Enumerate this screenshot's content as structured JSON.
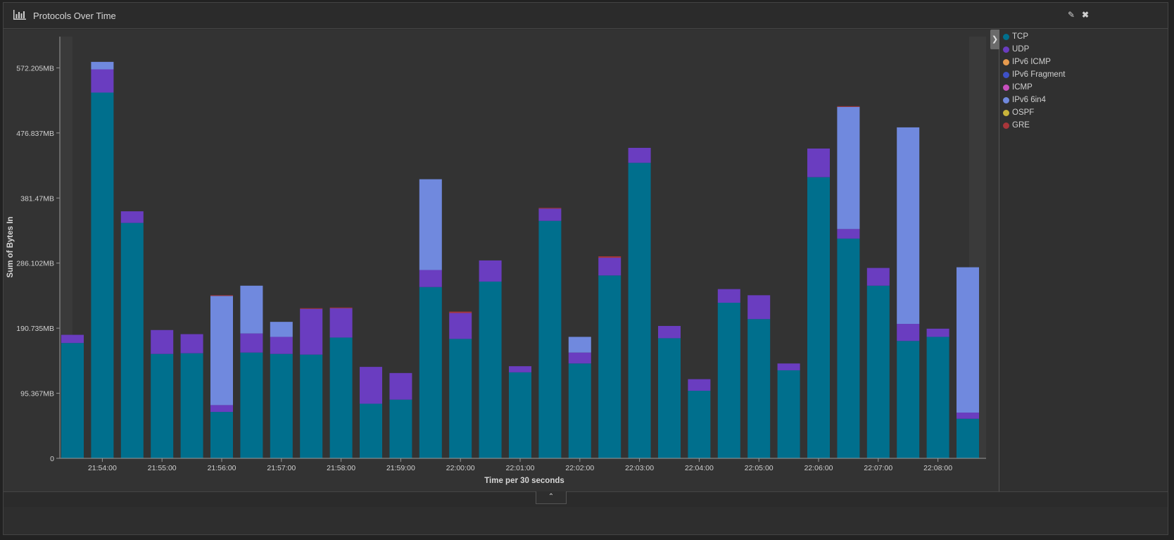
{
  "panel": {
    "title": "Protocols Over Time",
    "edit_icon": "pencil-icon",
    "close_icon": "close-icon"
  },
  "legend": {
    "toggle_icon": "chevron-right-icon",
    "items": [
      {
        "label": "TCP",
        "color": "#006f8d"
      },
      {
        "label": "UDP",
        "color": "#6a3dc0"
      },
      {
        "label": "IPv6 ICMP",
        "color": "#e69a4e"
      },
      {
        "label": "IPv6 Fragment",
        "color": "#3e51c8"
      },
      {
        "label": "ICMP",
        "color": "#c74fbd"
      },
      {
        "label": "IPv6 6in4",
        "color": "#7089de"
      },
      {
        "label": "OSPF",
        "color": "#c9b43b"
      },
      {
        "label": "GRE",
        "color": "#a8363a"
      }
    ]
  },
  "footer": {
    "collapse_icon": "chevron-up-icon"
  },
  "chart_data": {
    "type": "bar",
    "stacked": true,
    "ylabel": "Sum of Bytes In",
    "xlabel": "Time per 30 seconds",
    "ylim": [
      0,
      618
    ],
    "yticks": [
      0,
      95.367,
      190.735,
      286.102,
      381.47,
      476.837,
      572.205
    ],
    "ytick_labels": [
      "0",
      "95.367MB",
      "190.735MB",
      "286.102MB",
      "381.47MB",
      "476.837MB",
      "572.205MB"
    ],
    "xtick_labels": [
      "21:54:00",
      "21:55:00",
      "21:56:00",
      "21:57:00",
      "21:58:00",
      "21:59:00",
      "22:00:00",
      "22:01:00",
      "22:02:00",
      "22:03:00",
      "22:04:00",
      "22:05:00",
      "22:06:00",
      "22:07:00",
      "22:08:00"
    ],
    "grid": false,
    "legend_position": "right",
    "categories": [
      "21:53:30",
      "21:54:00",
      "21:54:30",
      "21:55:00",
      "21:55:30",
      "21:56:00",
      "21:56:30",
      "21:57:00",
      "21:57:30",
      "21:58:00",
      "21:58:30",
      "21:59:00",
      "21:59:30",
      "22:00:00",
      "22:00:30",
      "22:01:00",
      "22:01:30",
      "22:02:00",
      "22:02:30",
      "22:03:00",
      "22:03:30",
      "22:04:00",
      "22:04:30",
      "22:05:00",
      "22:05:30",
      "22:06:00",
      "22:06:30",
      "22:07:00",
      "22:07:30",
      "22:08:00",
      "22:08:30"
    ],
    "series": [
      {
        "name": "TCP",
        "color": "#006f8d",
        "values": [
          169,
          536,
          345,
          153,
          154,
          68,
          155,
          153,
          152,
          177,
          80,
          86,
          251,
          175,
          259,
          126,
          348,
          139,
          268,
          433,
          176,
          99,
          228,
          204,
          129,
          412,
          322,
          253,
          172,
          178,
          58
        ]
      },
      {
        "name": "UDP",
        "color": "#6a3dc0",
        "values": [
          12,
          34,
          17,
          35,
          28,
          10,
          28,
          25,
          67,
          43,
          54,
          39,
          25,
          38,
          31,
          9,
          18,
          16,
          26,
          22,
          18,
          17,
          20,
          35,
          10,
          42,
          14,
          26,
          25,
          12,
          9
        ]
      },
      {
        "name": "IPv6 ICMP",
        "color": "#e69a4e",
        "values": [
          0,
          0,
          0,
          0,
          0,
          0,
          0,
          0,
          0,
          0,
          0,
          0,
          0,
          0,
          0,
          0,
          0,
          0,
          0,
          0,
          0,
          0,
          0,
          0,
          0,
          0,
          0,
          0,
          0,
          0,
          0
        ]
      },
      {
        "name": "IPv6 Fragment",
        "color": "#3e51c8",
        "values": [
          0,
          0,
          0,
          0,
          0,
          0,
          0,
          0,
          0,
          0,
          0,
          0,
          0,
          0,
          0,
          0,
          0,
          0,
          0,
          0,
          0,
          0,
          0,
          0,
          0,
          0,
          0,
          0,
          0,
          0,
          0
        ]
      },
      {
        "name": "ICMP",
        "color": "#c74fbd",
        "values": [
          0,
          0,
          0,
          0,
          0,
          0,
          0,
          0,
          0,
          0,
          0,
          0,
          0,
          0,
          0,
          0,
          0,
          0,
          0,
          0,
          0,
          0,
          0,
          0,
          0,
          0,
          0,
          0,
          0,
          0,
          0
        ]
      },
      {
        "name": "IPv6 6in4",
        "color": "#7089de",
        "values": [
          0,
          11,
          0,
          0,
          0,
          160,
          70,
          22,
          0,
          0,
          0,
          0,
          133,
          0,
          0,
          0,
          0,
          23,
          0,
          0,
          0,
          0,
          0,
          0,
          0,
          0,
          179,
          0,
          288,
          0,
          213
        ]
      },
      {
        "name": "OSPF",
        "color": "#c9b43b",
        "values": [
          0,
          0,
          0,
          0,
          0,
          0,
          0,
          0,
          0,
          0,
          0,
          0,
          0,
          0,
          0,
          0,
          0,
          0,
          0,
          0,
          0,
          0,
          0,
          0,
          0,
          0,
          0,
          0,
          0,
          0,
          0
        ]
      },
      {
        "name": "GRE",
        "color": "#a8363a",
        "values": [
          0,
          0,
          0,
          0,
          0,
          1,
          0,
          0,
          1,
          1,
          0,
          0,
          0,
          2,
          0,
          0,
          1,
          0,
          2,
          0,
          0,
          0,
          0,
          0,
          0,
          0,
          1,
          0,
          0,
          0,
          0
        ]
      }
    ]
  }
}
